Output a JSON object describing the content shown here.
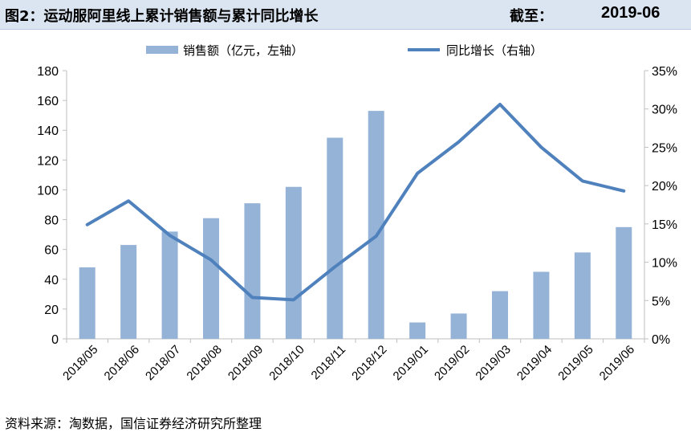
{
  "header": {
    "title": "图2：运动服阿里线上累计销售额与累计同比增长",
    "date_label": "截至：",
    "date_value": "2019-06"
  },
  "source": "资料来源：淘数据，国信证券经济研究所整理",
  "colors": {
    "bar": "#95b3d7",
    "line": "#4f81bd",
    "title_bg": "#dbe5f1",
    "axis": "#bfbfbf"
  },
  "chart_data": {
    "type": "bar+line",
    "categories": [
      "2018/05",
      "2018/06",
      "2018/07",
      "2018/08",
      "2018/09",
      "2018/10",
      "2018/11",
      "2018/12",
      "2019/01",
      "2019/02",
      "2019/03",
      "2019/04",
      "2019/05",
      "2019/06"
    ],
    "series": [
      {
        "name": "销售额（亿元，左轴）",
        "type": "bar",
        "axis": "left",
        "values": [
          48,
          63,
          72,
          81,
          91,
          102,
          135,
          153,
          11,
          17,
          32,
          45,
          58,
          75
        ]
      },
      {
        "name": "同比增长（右轴）",
        "type": "line",
        "axis": "right",
        "values": [
          0.149,
          0.18,
          0.135,
          0.103,
          0.054,
          0.051,
          0.094,
          0.134,
          0.216,
          0.257,
          0.306,
          0.25,
          0.206,
          0.193
        ]
      }
    ],
    "y_left": {
      "min": 0,
      "max": 180,
      "ticks": [
        "0",
        "20",
        "40",
        "60",
        "80",
        "100",
        "120",
        "140",
        "160",
        "180"
      ]
    },
    "y_right": {
      "min": 0,
      "max": 0.35,
      "ticks": [
        "0%",
        "5%",
        "10%",
        "15%",
        "20%",
        "25%",
        "30%",
        "35%"
      ]
    },
    "grid": false,
    "legend_position": "top"
  }
}
